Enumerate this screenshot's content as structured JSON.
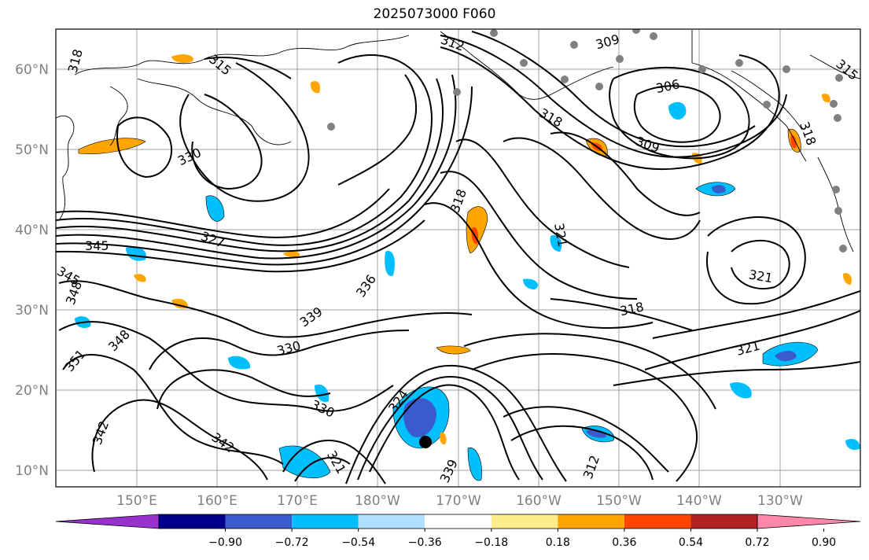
{
  "title": "2025073000 F060",
  "colors": {
    "contour": "#000000",
    "coast": "#000000",
    "grid": "#a0a0a0",
    "station": "#808080",
    "storm": "#000000"
  },
  "lat_labels": [
    "60°N",
    "50°N",
    "40°N",
    "30°N",
    "20°N",
    "10°N"
  ],
  "lon_labels": [
    "150°E",
    "160°E",
    "170°E",
    "180°W",
    "170°W",
    "160°W",
    "150°W",
    "140°W",
    "130°W"
  ],
  "contour_labels": [
    "318",
    "315",
    "312",
    "309",
    "306",
    "330",
    "318",
    "318",
    "309",
    "315",
    "318",
    "321",
    "345",
    "327",
    "336",
    "345",
    "348",
    "339",
    "318",
    "348",
    "330",
    "321",
    "351",
    "324",
    "330",
    "342",
    "342",
    "321",
    "339",
    "312",
    "321"
  ],
  "colorbar": {
    "ticks": [
      "−0.90",
      "−0.72",
      "−0.54",
      "−0.36",
      "−0.18",
      "0.18",
      "0.36",
      "0.54",
      "0.72",
      "0.90"
    ],
    "colors": [
      "#9932cc",
      "#00008b",
      "#3b5bcc",
      "#00bfff",
      "#b0e0ff",
      "#ffffff",
      "#ffec8b",
      "#ffa500",
      "#ff4500",
      "#b22222",
      "#ff88aa"
    ]
  }
}
